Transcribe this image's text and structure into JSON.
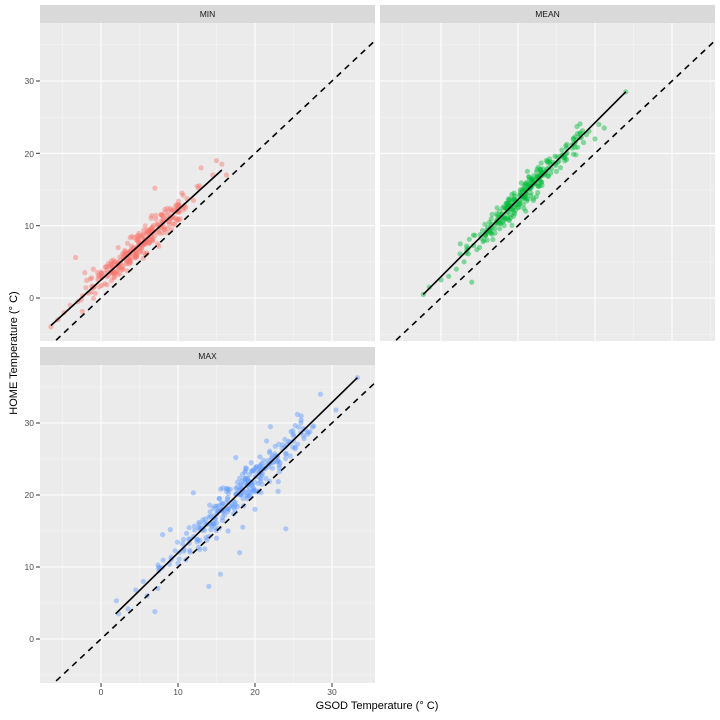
{
  "chart_data": {
    "type": "scatter",
    "title": "",
    "xlabel": "GSOD Temperature (° C)",
    "ylabel": "HOME Temperature (° C)",
    "xlim": [
      -7.9,
      35.6
    ],
    "ylim": [
      -5.9,
      38.0
    ],
    "x_ticks": [
      0,
      10,
      20,
      30
    ],
    "y_ticks": [
      0,
      10,
      20,
      30
    ],
    "grid": true,
    "legend": "none",
    "reference_line": {
      "type": "identity",
      "style": "dashed",
      "slope": 1,
      "intercept": 0
    },
    "facets": [
      {
        "name": "MIN",
        "color": "#F8766D",
        "n_points_approx": 365,
        "x_range": [
          -6.5,
          16.5
        ],
        "y_range": [
          -4.0,
          19.0
        ],
        "fit_line": {
          "x": [
            -6.5,
            15.7
          ],
          "y": [
            -3.8,
            17.7
          ]
        },
        "sample_points": [
          [
            -6.5,
            -4.0
          ],
          [
            -5.6,
            -3.0
          ],
          [
            -4.8,
            -2.0
          ],
          [
            -4.0,
            -1.0
          ],
          [
            -3.0,
            -0.5
          ],
          [
            -2.4,
            0.3
          ],
          [
            -3.3,
            5.6
          ],
          [
            -2.1,
            3.5
          ],
          [
            -1.0,
            4.0
          ],
          [
            0,
            3.0
          ],
          [
            1.0,
            4.8
          ],
          [
            2.0,
            5.0
          ],
          [
            3.0,
            6.0
          ],
          [
            4.0,
            8.5
          ],
          [
            5.0,
            7.0
          ],
          [
            6.0,
            9.0
          ],
          [
            7.0,
            15.2
          ],
          [
            7.5,
            10.0
          ],
          [
            8.0,
            10.5
          ],
          [
            9.0,
            11.0
          ],
          [
            10.0,
            12.0
          ],
          [
            10.5,
            14.5
          ],
          [
            11.0,
            12.5
          ],
          [
            12.0,
            13.5
          ],
          [
            12.8,
            15.5
          ],
          [
            13.0,
            18.0
          ],
          [
            14.5,
            17.0
          ],
          [
            15.0,
            19.0
          ],
          [
            15.7,
            18.5
          ],
          [
            16.3,
            17.0
          ]
        ]
      },
      {
        "name": "MEAN",
        "color": "#00BA38",
        "n_points_approx": 365,
        "x_range": [
          -2.5,
          24.0
        ],
        "y_range": [
          0.3,
          28.5
        ],
        "fit_line": {
          "x": [
            -2.3,
            24.0
          ],
          "y": [
            0.5,
            28.5
          ]
        },
        "sample_points": [
          [
            -2.3,
            0.5
          ],
          [
            -1.5,
            1.5
          ],
          [
            0,
            2.5
          ],
          [
            1.0,
            3.0
          ],
          [
            2.0,
            4.0
          ],
          [
            3.0,
            5.0
          ],
          [
            2.5,
            7.5
          ],
          [
            4.0,
            2.2
          ],
          [
            5.0,
            7.0
          ],
          [
            6.0,
            8.0
          ],
          [
            7.0,
            9.0
          ],
          [
            8.0,
            10.5
          ],
          [
            9.0,
            11.5
          ],
          [
            9.5,
            14.5
          ],
          [
            10.0,
            12.5
          ],
          [
            11.0,
            12.0
          ],
          [
            12.0,
            13.5
          ],
          [
            13.0,
            16.0
          ],
          [
            14.0,
            18.0
          ],
          [
            15.0,
            17.5
          ],
          [
            16.0,
            19.5
          ],
          [
            17.5,
            19.8
          ],
          [
            18.5,
            21.5
          ],
          [
            20.0,
            22.0
          ],
          [
            20.5,
            24.0
          ],
          [
            21.2,
            23.5
          ],
          [
            24.0,
            28.5
          ]
        ]
      },
      {
        "name": "MAX",
        "color": "#619CFF",
        "n_points_approx": 365,
        "x_range": [
          2.0,
          33.3
        ],
        "y_range": [
          3.5,
          36.3
        ],
        "fit_line": {
          "x": [
            1.9,
            33.3
          ],
          "y": [
            3.5,
            36.3
          ]
        },
        "sample_points": [
          [
            2.0,
            5.3
          ],
          [
            2.3,
            3.5
          ],
          [
            3.5,
            4.2
          ],
          [
            4.5,
            6.8
          ],
          [
            5.5,
            8.0
          ],
          [
            6.0,
            6.0
          ],
          [
            7.0,
            3.8
          ],
          [
            7.5,
            9.5
          ],
          [
            8.0,
            14.5
          ],
          [
            9.0,
            15.2
          ],
          [
            10.0,
            10.5
          ],
          [
            11.0,
            11.0
          ],
          [
            12.0,
            20.3
          ],
          [
            12.5,
            13.5
          ],
          [
            13.5,
            12.5
          ],
          [
            14.0,
            7.3
          ],
          [
            15.0,
            14.0
          ],
          [
            15.5,
            9.0
          ],
          [
            16.5,
            15.0
          ],
          [
            17.5,
            25.2
          ],
          [
            18.0,
            12.0
          ],
          [
            19.0,
            19.5
          ],
          [
            19.5,
            24.5
          ],
          [
            20.0,
            18.0
          ],
          [
            20.5,
            22.5
          ],
          [
            21.5,
            27.5
          ],
          [
            22.0,
            29.5
          ],
          [
            23.0,
            20.5
          ],
          [
            23.5,
            26.5
          ],
          [
            24.0,
            15.3
          ],
          [
            25.0,
            27.5
          ],
          [
            25.5,
            31.2
          ],
          [
            26.0,
            31.0
          ],
          [
            28.5,
            34.0
          ],
          [
            30.5,
            31.8
          ],
          [
            33.3,
            36.3
          ]
        ]
      }
    ]
  },
  "facets": {
    "min_label": "MIN",
    "mean_label": "MEAN",
    "max_label": "MAX"
  },
  "axes": {
    "x_title": "GSOD Temperature (° C)",
    "y_title": "HOME Temperature (° C)",
    "x_tick_labels": [
      "0",
      "10",
      "20",
      "30"
    ],
    "y_tick_labels": [
      "0",
      "10",
      "20",
      "30"
    ]
  }
}
